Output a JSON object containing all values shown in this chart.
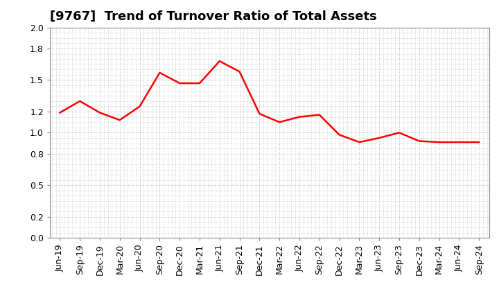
{
  "title": "[9767]  Trend of Turnover Ratio of Total Assets",
  "line_color": "#FF0000",
  "background_color": "#FFFFFF",
  "grid_color": "#AAAAAA",
  "ylim": [
    0.0,
    2.0
  ],
  "yticks": [
    0.0,
    0.2,
    0.5,
    0.8,
    1.0,
    1.2,
    1.5,
    1.8,
    2.0
  ],
  "labels": [
    "Jun-19",
    "Sep-19",
    "Dec-19",
    "Mar-20",
    "Jun-20",
    "Sep-20",
    "Dec-20",
    "Mar-21",
    "Jun-21",
    "Sep-21",
    "Dec-21",
    "Mar-22",
    "Jun-22",
    "Sep-22",
    "Dec-22",
    "Mar-23",
    "Jun-23",
    "Sep-23",
    "Dec-23",
    "Mar-24",
    "Jun-24",
    "Sep-24"
  ],
  "values": [
    1.19,
    1.3,
    1.19,
    1.12,
    1.25,
    1.57,
    1.47,
    1.47,
    1.68,
    1.58,
    1.18,
    1.1,
    1.15,
    1.17,
    0.98,
    0.91,
    0.95,
    1.0,
    0.92,
    0.91,
    0.91,
    0.91
  ],
  "title_fontsize": 13,
  "tick_fontsize": 9,
  "line_width": 1.8,
  "fig_bg_color": "#FFFFFF",
  "spine_color": "#888888"
}
